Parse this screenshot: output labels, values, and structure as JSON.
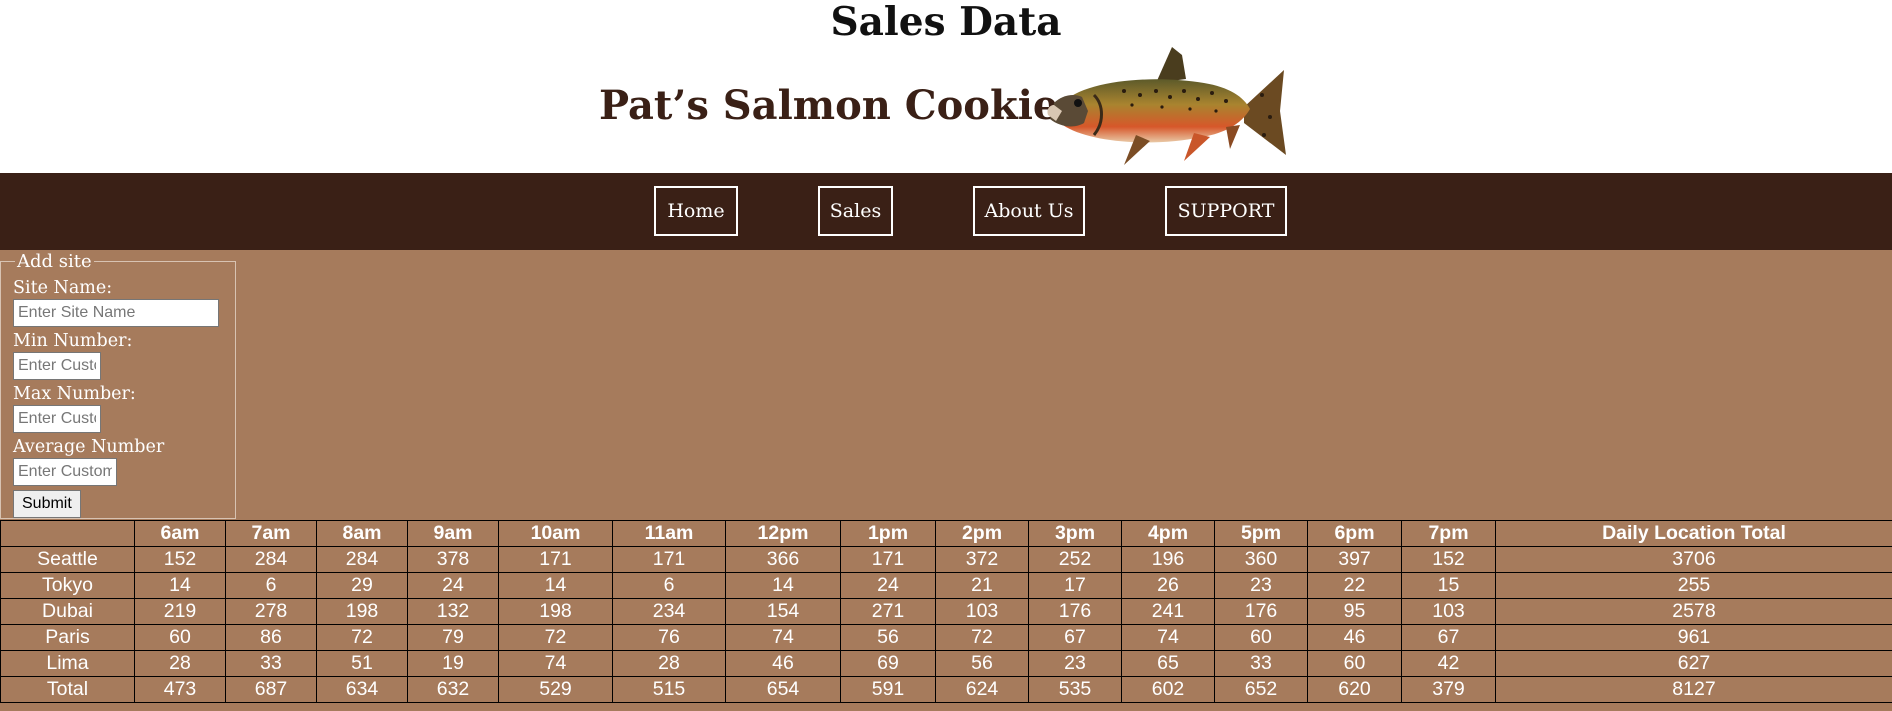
{
  "header": {
    "page_title": "Sales Data",
    "brand": "Pat’s Salmon Cookies",
    "logo_icon": "salmon-fish-image"
  },
  "nav": {
    "items": [
      {
        "label": "Home"
      },
      {
        "label": "Sales"
      },
      {
        "label": "About Us"
      },
      {
        "label": "SUPPORT"
      }
    ]
  },
  "form": {
    "legend": "Add site",
    "site_name_label": "Site Name:",
    "site_name_placeholder": "Enter Site Name",
    "min_label": "Min Number:",
    "min_placeholder": "Enter Customers",
    "max_label": "Max Number:",
    "max_placeholder": "Enter Customers",
    "avg_label": "Average Number",
    "avg_placeholder": "Enter Customers",
    "submit_label": "Submit"
  },
  "table": {
    "headers": [
      "",
      "6am",
      "7am",
      "8am",
      "9am",
      "10am",
      "11am",
      "12pm",
      "1pm",
      "2pm",
      "3pm",
      "4pm",
      "5pm",
      "6pm",
      "7pm",
      "Daily Location Total"
    ],
    "rows": [
      [
        "Seattle",
        "152",
        "284",
        "284",
        "378",
        "171",
        "171",
        "366",
        "171",
        "372",
        "252",
        "196",
        "360",
        "397",
        "152",
        "3706"
      ],
      [
        "Tokyo",
        "14",
        "6",
        "29",
        "24",
        "14",
        "6",
        "14",
        "24",
        "21",
        "17",
        "26",
        "23",
        "22",
        "15",
        "255"
      ],
      [
        "Dubai",
        "219",
        "278",
        "198",
        "132",
        "198",
        "234",
        "154",
        "271",
        "103",
        "176",
        "241",
        "176",
        "95",
        "103",
        "2578"
      ],
      [
        "Paris",
        "60",
        "86",
        "72",
        "79",
        "72",
        "76",
        "74",
        "56",
        "72",
        "67",
        "74",
        "60",
        "46",
        "67",
        "961"
      ],
      [
        "Lima",
        "28",
        "33",
        "51",
        "19",
        "74",
        "28",
        "46",
        "69",
        "56",
        "23",
        "65",
        "33",
        "60",
        "42",
        "627"
      ],
      [
        "Total",
        "473",
        "687",
        "634",
        "632",
        "529",
        "515",
        "654",
        "591",
        "624",
        "535",
        "602",
        "652",
        "620",
        "379",
        "8127"
      ]
    ]
  },
  "colors": {
    "page_background": "#a67b5c",
    "nav_background": "#3a2016",
    "brand_text": "#3a2016"
  }
}
